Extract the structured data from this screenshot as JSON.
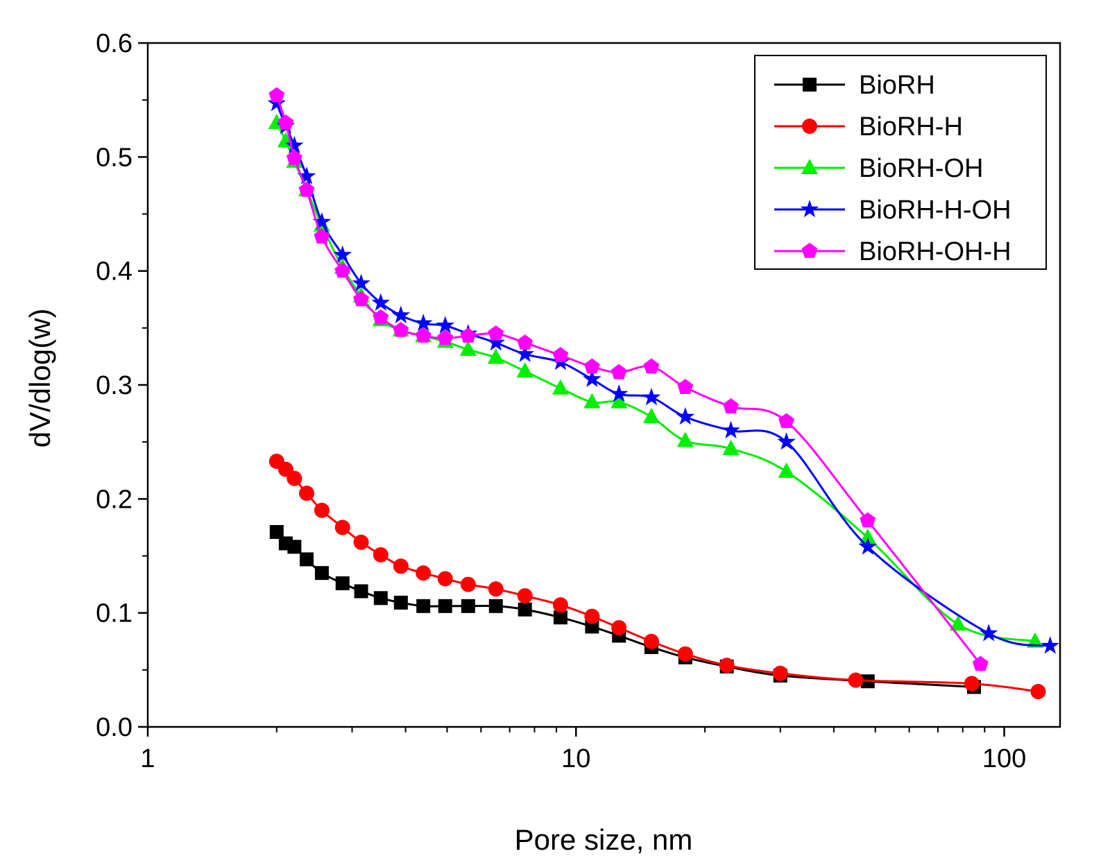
{
  "chart_data": {
    "type": "line",
    "title": "",
    "xlabel": "Pore size, nm",
    "ylabel": "dV/dlog(w)",
    "xscale": "log",
    "xlim": [
      1,
      135
    ],
    "ylim": [
      0.0,
      0.6
    ],
    "x_ticks": [
      1,
      10,
      100
    ],
    "x_tick_labels": [
      "1",
      "10",
      "100"
    ],
    "y_ticks": [
      0.0,
      0.1,
      0.2,
      0.3,
      0.4,
      0.5,
      0.6
    ],
    "y_tick_labels": [
      "0.0",
      "0.1",
      "0.2",
      "0.3",
      "0.4",
      "0.5",
      "0.6"
    ],
    "legend_position": "top-right",
    "series": [
      {
        "name": "BioRH",
        "color": "#000000",
        "marker": "square",
        "x": [
          2.0,
          2.1,
          2.2,
          2.35,
          2.55,
          2.85,
          3.15,
          3.5,
          3.9,
          4.4,
          4.95,
          5.6,
          6.5,
          7.6,
          9.2,
          10.9,
          12.6,
          15.0,
          18.0,
          22.5,
          30.0,
          48.0,
          85.0
        ],
        "y": [
          0.171,
          0.161,
          0.158,
          0.147,
          0.135,
          0.126,
          0.119,
          0.113,
          0.109,
          0.106,
          0.106,
          0.106,
          0.106,
          0.103,
          0.096,
          0.088,
          0.08,
          0.07,
          0.061,
          0.053,
          0.045,
          0.04,
          0.035
        ]
      },
      {
        "name": "BioRH-H",
        "color": "#ff0000",
        "marker": "circle",
        "x": [
          2.0,
          2.1,
          2.2,
          2.35,
          2.55,
          2.85,
          3.15,
          3.5,
          3.9,
          4.4,
          4.95,
          5.6,
          6.5,
          7.6,
          9.2,
          10.9,
          12.6,
          15.0,
          18.0,
          22.5,
          30.0,
          45.0,
          84.0,
          120.0
        ],
        "y": [
          0.233,
          0.226,
          0.218,
          0.205,
          0.19,
          0.175,
          0.162,
          0.151,
          0.141,
          0.135,
          0.13,
          0.125,
          0.121,
          0.115,
          0.107,
          0.097,
          0.087,
          0.075,
          0.064,
          0.054,
          0.047,
          0.041,
          0.038,
          0.031
        ]
      },
      {
        "name": "BioRH-OH",
        "color": "#00ee00",
        "marker": "triangle",
        "x": [
          2.0,
          2.1,
          2.2,
          2.35,
          2.55,
          2.85,
          3.15,
          3.5,
          3.9,
          4.4,
          4.95,
          5.6,
          6.5,
          7.6,
          9.2,
          10.9,
          12.6,
          15.0,
          18.0,
          23.0,
          31.0,
          48.0,
          78.0,
          118.0
        ],
        "y": [
          0.53,
          0.514,
          0.496,
          0.471,
          0.44,
          0.403,
          0.378,
          0.357,
          0.348,
          0.343,
          0.338,
          0.331,
          0.324,
          0.312,
          0.297,
          0.285,
          0.285,
          0.272,
          0.251,
          0.244,
          0.224,
          0.166,
          0.09,
          0.075
        ]
      },
      {
        "name": "BioRH-H-OH",
        "color": "#0000ff",
        "marker": "star",
        "x": [
          2.0,
          2.1,
          2.2,
          2.35,
          2.55,
          2.85,
          3.15,
          3.5,
          3.9,
          4.4,
          4.95,
          5.6,
          6.5,
          7.6,
          9.2,
          10.9,
          12.6,
          15.0,
          18.0,
          23.0,
          31.0,
          48.0,
          92.0,
          128.0
        ],
        "y": [
          0.547,
          0.527,
          0.51,
          0.483,
          0.443,
          0.414,
          0.389,
          0.372,
          0.361,
          0.354,
          0.352,
          0.345,
          0.337,
          0.327,
          0.32,
          0.305,
          0.292,
          0.289,
          0.272,
          0.26,
          0.25,
          0.158,
          0.082,
          0.071
        ]
      },
      {
        "name": "BioRH-OH-H",
        "color": "#ff00ff",
        "marker": "pentagon",
        "x": [
          2.0,
          2.1,
          2.2,
          2.35,
          2.55,
          2.85,
          3.15,
          3.5,
          3.9,
          4.4,
          4.95,
          5.6,
          6.5,
          7.6,
          9.2,
          10.9,
          12.6,
          15.0,
          18.0,
          23.0,
          31.0,
          48.0,
          88.0
        ],
        "y": [
          0.554,
          0.53,
          0.499,
          0.471,
          0.43,
          0.4,
          0.375,
          0.359,
          0.348,
          0.343,
          0.341,
          0.343,
          0.345,
          0.337,
          0.326,
          0.316,
          0.311,
          0.316,
          0.298,
          0.281,
          0.268,
          0.181,
          0.055
        ]
      }
    ]
  }
}
